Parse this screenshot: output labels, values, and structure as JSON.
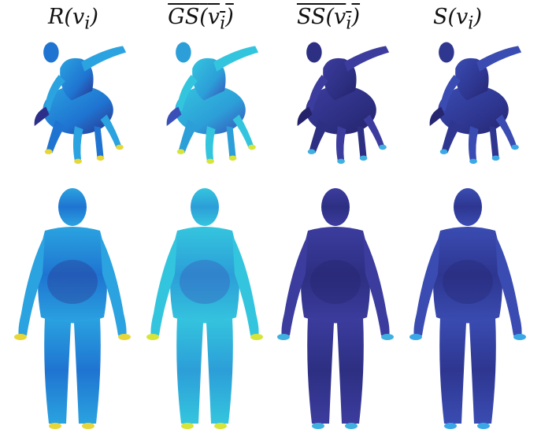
{
  "columns": [
    {
      "func": "R",
      "arg": "v",
      "sub": "i",
      "overline": false
    },
    {
      "func": "GS",
      "arg": "v",
      "sub": "i",
      "overline": true
    },
    {
      "func": "SS",
      "arg": "v",
      "sub": "i",
      "overline": true
    },
    {
      "func": "S",
      "arg": "v",
      "sub": "i",
      "overline": false
    }
  ],
  "rows": [
    "centaur",
    "human"
  ],
  "colors": {
    "blue": "#2a6fd8",
    "cyan": "#22b8d8",
    "navy": "#2b2f7a",
    "yellow": "#e7d63a",
    "red": "#c9221c",
    "green": "#6ad05c"
  },
  "palettes": [
    {
      "base": "#2aa3e0",
      "mid": "#1f74d1",
      "dark": "#2b2f8a",
      "hot": "#e7d63a"
    },
    {
      "base": "#34c5de",
      "mid": "#2c9ed8",
      "dark": "#3a4fb8",
      "hot": "#d7e43a"
    },
    {
      "base": "#3c3c9e",
      "mid": "#2d2f82",
      "dark": "#24226a",
      "hot": "#3fb0e0"
    },
    {
      "base": "#3a4cb2",
      "mid": "#2e3690",
      "dark": "#262670",
      "hot": "#3aa8e6"
    }
  ]
}
